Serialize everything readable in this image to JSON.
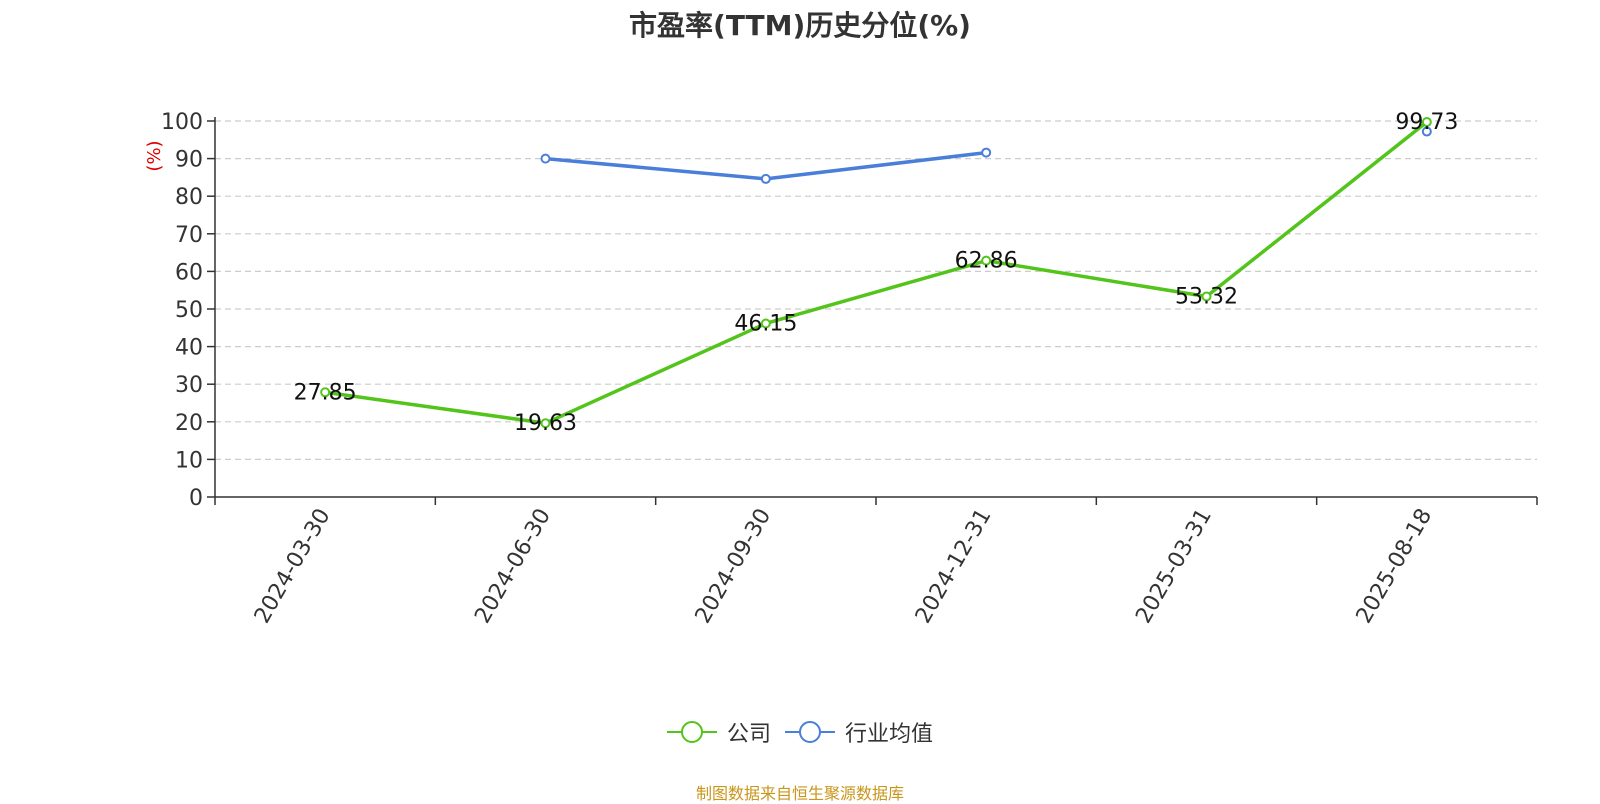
{
  "chart_data": {
    "type": "line",
    "title": "市盈率(TTM)历史分位(%)",
    "ylabel": "(%)",
    "xlabel": "",
    "categories": [
      "2024-03-30",
      "2024-06-30",
      "2024-09-30",
      "2024-12-31",
      "2025-03-31",
      "2025-08-18"
    ],
    "ylim": [
      0,
      100
    ],
    "yticks": [
      0,
      10,
      20,
      30,
      40,
      50,
      60,
      70,
      80,
      90,
      100
    ],
    "grid": true,
    "legend_position": "bottom",
    "series": [
      {
        "name": "公司",
        "color": "#52c41a",
        "values": [
          27.85,
          19.63,
          46.15,
          62.86,
          53.32,
          99.73
        ],
        "show_labels": true
      },
      {
        "name": "行业均值",
        "color": "#4a7fd9",
        "values": [
          null,
          90.0,
          84.6,
          91.6,
          null,
          97.2
        ],
        "show_labels": false
      }
    ],
    "source": "制图数据来自恒生聚源数据库"
  },
  "colors": {
    "axis": "#333333",
    "grid": "#cccccc",
    "ylabel": "#e00000",
    "source": "#c8961a"
  }
}
